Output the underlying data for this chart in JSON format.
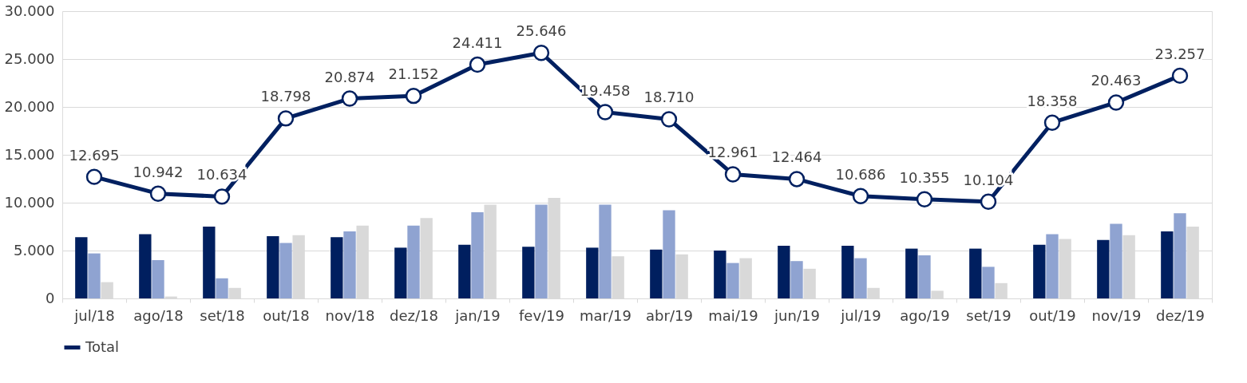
{
  "chart_data": {
    "type": "bar",
    "categories": [
      "jul/18",
      "ago/18",
      "set/18",
      "out/18",
      "nov/18",
      "dez/18",
      "jan/19",
      "fev/19",
      "mar/19",
      "abr/19",
      "mai/19",
      "jun/19",
      "jul/19",
      "ago/19",
      "set/19",
      "out/19",
      "nov/19",
      "dez/19"
    ],
    "series": [
      {
        "color": "#001f5f",
        "values": [
          6400,
          6700,
          7500,
          6500,
          6400,
          5300,
          5600,
          5400,
          5300,
          5100,
          5000,
          5500,
          5500,
          5200,
          5200,
          5600,
          6100,
          7000
        ]
      },
      {
        "color": "#8fa3d1",
        "values": [
          4700,
          4000,
          2100,
          5800,
          7000,
          7600,
          9000,
          9800,
          9800,
          9200,
          3700,
          3900,
          4200,
          4500,
          3300,
          6700,
          7800,
          8900
        ]
      },
      {
        "color": "#d9d9d9",
        "values": [
          1700,
          200,
          1100,
          6600,
          7600,
          8400,
          9800,
          10500,
          4400,
          4600,
          4200,
          3100,
          1100,
          800,
          1600,
          6200,
          6600,
          7500
        ]
      },
      {
        "name": "Total",
        "type": "line",
        "color": "#002060",
        "marker": "circle",
        "values": [
          12695,
          10942,
          10634,
          18798,
          20874,
          21152,
          24411,
          25646,
          19458,
          18710,
          12961,
          12464,
          10686,
          10355,
          10104,
          18358,
          20463,
          23257
        ],
        "value_labels": [
          "12.695",
          "10.942",
          "10.634",
          "18.798",
          "20.874",
          "21.152",
          "24.411",
          "25.646",
          "19.458",
          "18.710",
          "12.961",
          "12.464",
          "10.686",
          "10.355",
          "10.104",
          "18.358",
          "20.463",
          "23.257"
        ]
      }
    ],
    "ylim": [
      0,
      30000
    ],
    "yticks": [
      {
        "value": 0,
        "label": "0"
      },
      {
        "value": 5000,
        "label": "5.000"
      },
      {
        "value": 10000,
        "label": "10.000"
      },
      {
        "value": 15000,
        "label": "15.000"
      },
      {
        "value": 20000,
        "label": "20.000"
      },
      {
        "value": 25000,
        "label": "25.000"
      },
      {
        "value": 30000,
        "label": "30.000"
      }
    ],
    "grid": "y",
    "legend": "bottom"
  }
}
